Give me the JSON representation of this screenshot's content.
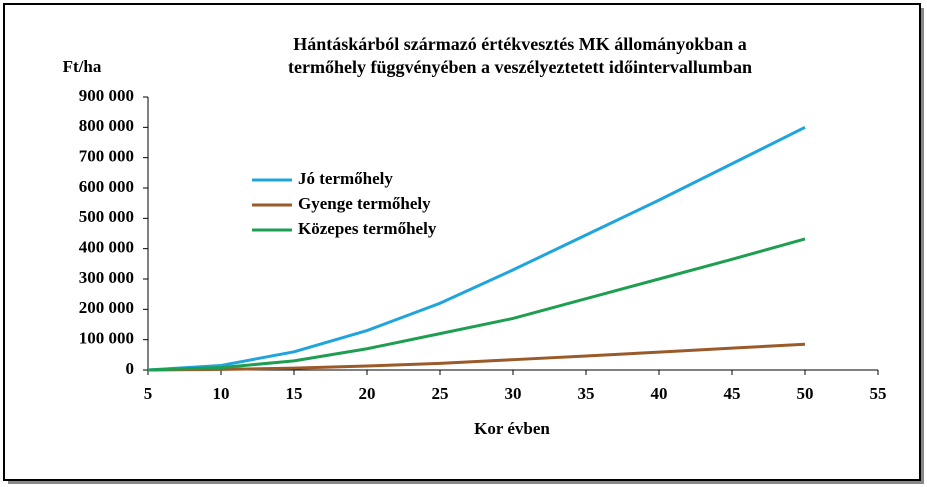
{
  "chart_data": {
    "type": "line",
    "title": [
      "Hántáskárból származó értékvesztés MK állományokban a",
      "termőhely függvényében a veszélyeztetett  időintervallumban"
    ],
    "y_label": "Ft/ha",
    "x_label": "Kor évben",
    "x": [
      5,
      10,
      15,
      20,
      25,
      30,
      35,
      40,
      45,
      50
    ],
    "series": [
      {
        "name": "Jó termőhely",
        "color": "#1fa4dc",
        "values": [
          0,
          15000,
          60000,
          130000,
          220000,
          330000,
          445000,
          560000,
          680000,
          800000
        ]
      },
      {
        "name": "Gyenge termőhely",
        "color": "#9a5a2a",
        "values": [
          0,
          2000,
          6000,
          13000,
          22000,
          34000,
          46000,
          59000,
          72000,
          85000
        ]
      },
      {
        "name": "Közepes termőhely",
        "color": "#1e9e50",
        "values": [
          0,
          8000,
          30000,
          70000,
          120000,
          170000,
          235000,
          300000,
          365000,
          432000
        ]
      }
    ],
    "xlim": [
      5,
      55
    ],
    "xticks": [
      5,
      10,
      15,
      20,
      25,
      30,
      35,
      40,
      45,
      50,
      55
    ],
    "ylim": [
      0,
      900000
    ],
    "yticks": [
      0,
      {
        "value": 100000,
        "label": "100 000"
      },
      {
        "value": 200000,
        "label": "200 000"
      },
      {
        "value": 300000,
        "label": "300 000"
      },
      {
        "value": 400000,
        "label": "400 000"
      },
      {
        "value": 500000,
        "label": "500 000"
      },
      {
        "value": 600000,
        "label": "600 000"
      },
      {
        "value": 700000,
        "label": "700 000"
      },
      {
        "value": 800000,
        "label": "800 000"
      },
      {
        "value": 900000,
        "label": "900 000"
      }
    ]
  }
}
